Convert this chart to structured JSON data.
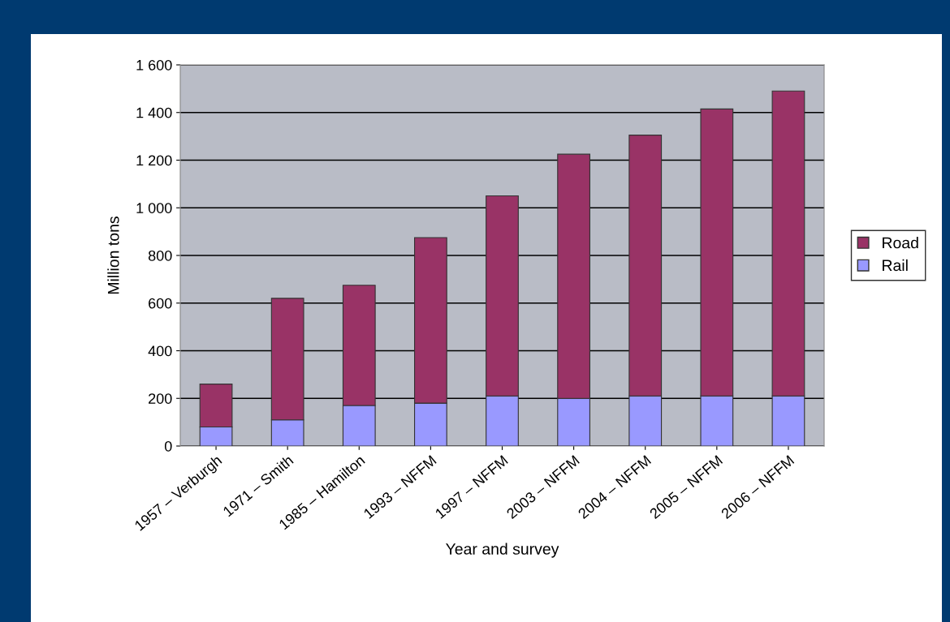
{
  "chart_data": {
    "type": "bar",
    "stacked": true,
    "xlabel": "Year and survey",
    "ylabel": "Million tons",
    "categories": [
      "1957 – Verburgh",
      "1971 – Smith",
      "1985 – Hamilton",
      "1993 – NFFM",
      "1997 – NFFM",
      "2003 – NFFM",
      "2004 – NFFM",
      "2005 – NFFM",
      "2006 – NFFM"
    ],
    "series": [
      {
        "name": "Rail",
        "color": "#9999ff",
        "values": [
          80,
          110,
          170,
          180,
          210,
          200,
          210,
          210,
          210
        ]
      },
      {
        "name": "Road",
        "color": "#993366",
        "values": [
          180,
          510,
          505,
          695,
          840,
          1025,
          1095,
          1205,
          1280
        ]
      }
    ],
    "ylim": [
      0,
      1600
    ],
    "yticks": [
      0,
      200,
      400,
      600,
      800,
      {
        "value": 1000,
        "label": "1 000"
      },
      {
        "value": 1200,
        "label": "1 200"
      },
      {
        "value": 1400,
        "label": "1 400"
      },
      {
        "value": 1600,
        "label": "1 600"
      }
    ],
    "grid": "y",
    "legend": "right"
  }
}
